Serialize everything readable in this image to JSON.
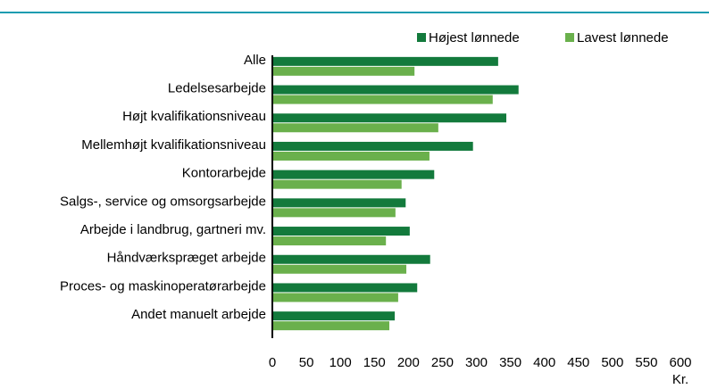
{
  "chart_data": {
    "type": "bar",
    "orientation": "horizontal",
    "categories": [
      "Alle",
      "Ledelsesarbejde",
      "Højt kvalifikationsniveau",
      "Mellemhøjt kvalifikationsniveau",
      "Kontorarbejde",
      "Salgs-, service og omsorgsarbejde",
      "Arbejde i landbrug, gartneri mv.",
      "Håndværkspræget arbejde",
      "Proces- og maskinoperatørarbejde",
      "Andet manuelt arbejde"
    ],
    "series": [
      {
        "name": "Højest lønnede",
        "color": "#137a3c",
        "values": [
          332,
          362,
          344,
          295,
          238,
          196,
          202,
          232,
          213,
          180
        ]
      },
      {
        "name": "Lavest lønnede",
        "color": "#6ab04c",
        "values": [
          209,
          324,
          244,
          231,
          190,
          181,
          167,
          197,
          185,
          172
        ]
      }
    ],
    "xlabel": "Kr.",
    "xlim": [
      0,
      600
    ],
    "xticks": [
      0,
      50,
      100,
      150,
      200,
      250,
      300,
      350,
      400,
      450,
      500,
      550,
      600
    ],
    "grid": false,
    "legend": "top-right"
  }
}
